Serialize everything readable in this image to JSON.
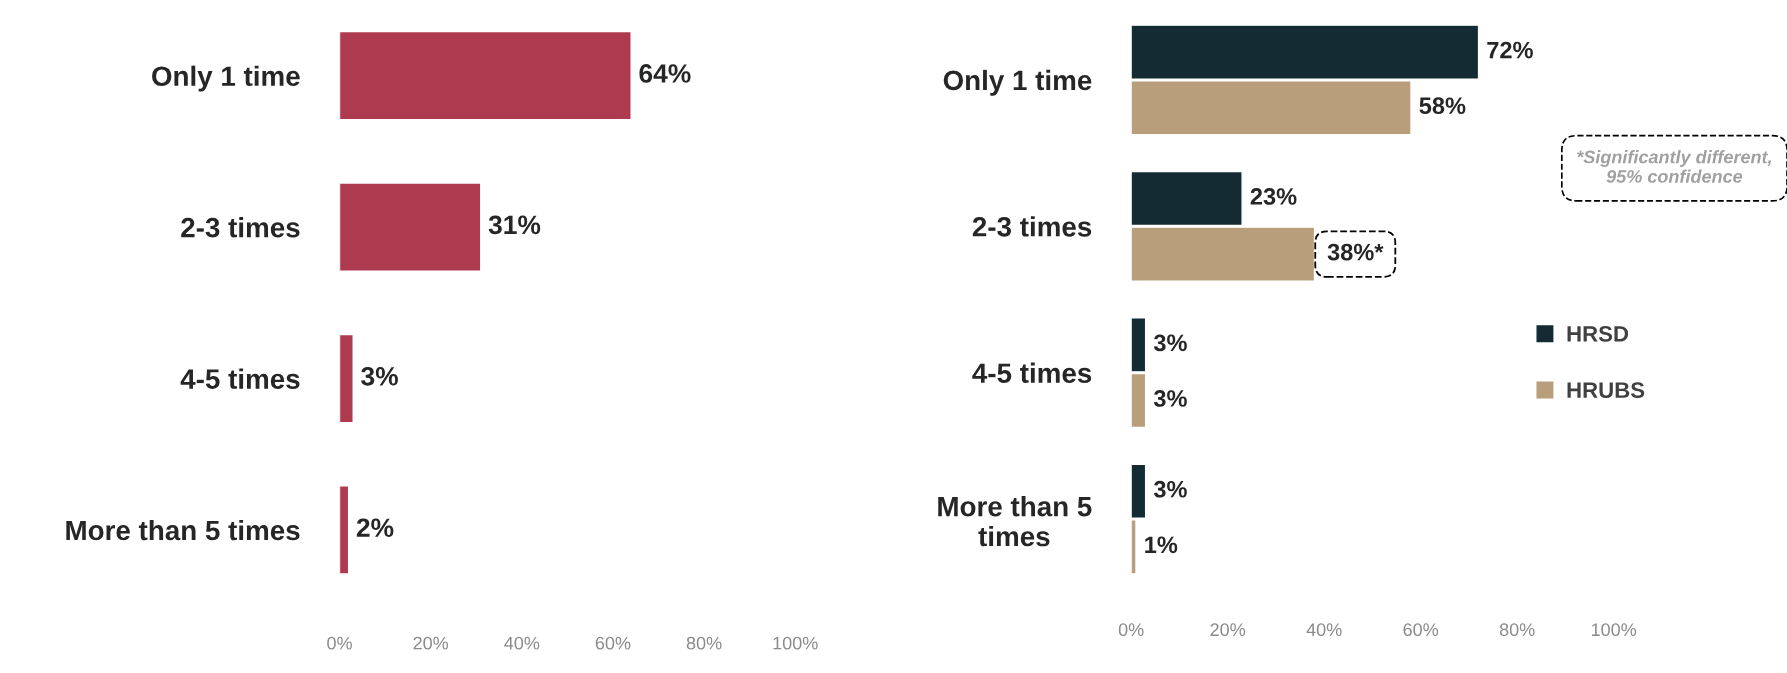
{
  "chart_data": [
    {
      "type": "bar",
      "orientation": "horizontal",
      "categories": [
        "Only 1 time",
        "2-3 times",
        "4-5 times",
        "More than 5 times"
      ],
      "series": [
        {
          "color": "#ad3a4f",
          "values": [
            64,
            31,
            3,
            2
          ],
          "value_labels": [
            "64%",
            "31%",
            "3%",
            "2%"
          ]
        }
      ],
      "xlim": [
        0,
        100
      ],
      "xticks": [
        {
          "value": 0,
          "label": "0%"
        },
        {
          "value": 20,
          "label": "20%"
        },
        {
          "value": 40,
          "label": "40%"
        },
        {
          "value": 60,
          "label": "60%"
        },
        {
          "value": 80,
          "label": "80%"
        },
        {
          "value": 100,
          "label": "100%"
        }
      ],
      "grid": false,
      "legend": false
    },
    {
      "type": "bar",
      "orientation": "horizontal",
      "categories": [
        "Only 1 time",
        "2-3 times",
        "4-5 times",
        "More than 5\ntimes"
      ],
      "series": [
        {
          "name": "HRSD",
          "color": "#142b33",
          "values": [
            72,
            23,
            3,
            3
          ],
          "value_labels": [
            "72%",
            "23%",
            "3%",
            "3%"
          ]
        },
        {
          "name": "HRUBS",
          "color": "#b99e7b",
          "values": [
            58,
            38,
            3,
            1
          ],
          "value_labels": [
            "58%",
            "38%*",
            "3%",
            "1%"
          ]
        }
      ],
      "xlim": [
        0,
        100
      ],
      "xticks": [
        {
          "value": 0,
          "label": "0%"
        },
        {
          "value": 20,
          "label": "20%"
        },
        {
          "value": 40,
          "label": "40%"
        },
        {
          "value": 60,
          "label": "60%"
        },
        {
          "value": 80,
          "label": "80%"
        },
        {
          "value": 100,
          "label": "100%"
        }
      ],
      "grid": false,
      "legend": "right",
      "annotations": [
        "*Significantly different, 95% confidence"
      ]
    }
  ]
}
